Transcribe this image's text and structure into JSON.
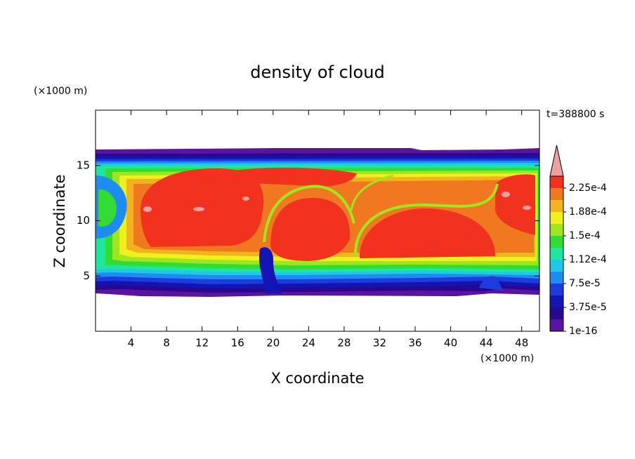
{
  "chart_data": {
    "type": "contour",
    "title": "density of cloud",
    "x_label": "X coordinate",
    "y_label": "Z coordinate",
    "x_unit": "(×1000 m)",
    "y_unit": "(×1000 m)",
    "annotation": "t=388800 s",
    "xlim": [
      0,
      50
    ],
    "ylim": [
      0,
      20
    ],
    "xticks": [
      4,
      8,
      12,
      16,
      20,
      24,
      28,
      32,
      36,
      40,
      44,
      48
    ],
    "yticks": [
      5,
      10,
      15
    ],
    "colorbar": {
      "levels": [
        1e-16,
        1.875e-05,
        3.75e-05,
        5.625e-05,
        7.5e-05,
        9.375e-05,
        0.0001125,
        0.00013125,
        0.00015,
        0.00016875,
        0.0001875,
        0.00020625,
        0.000225,
        0.00024375
      ],
      "colors": [
        "#5a14a0",
        "#28088c",
        "#1414b4",
        "#1e3cdc",
        "#1e8cf0",
        "#1ec8e6",
        "#1ee6a0",
        "#32dc32",
        "#a0e61e",
        "#f0f01e",
        "#f0b41e",
        "#f0781e",
        "#f0321e"
      ],
      "overflow_color": "#f0a0a0",
      "ticks": [
        1e-16,
        {
          "value": 3.75e-05,
          "label": "3.75e-5"
        },
        {
          "value": 7.5e-05,
          "label": "7.5e-5"
        },
        {
          "value": 0.0001125,
          "label": "1.12e-4"
        },
        {
          "value": 0.00015,
          "label": "1.5e-4"
        },
        {
          "value": 0.0001875,
          "label": "1.88e-4"
        },
        {
          "value": 0.000225,
          "label": "2.25e-4"
        }
      ]
    }
  }
}
